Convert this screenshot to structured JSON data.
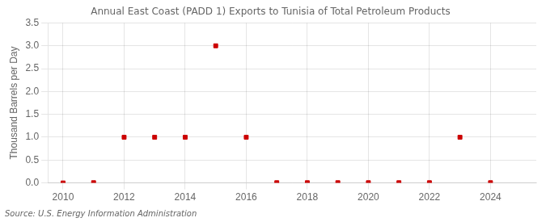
{
  "chart_data": {
    "type": "scatter",
    "title": "Annual East Coast (PADD 1) Exports to Tunisia of Total Petroleum Products",
    "ylabel": "Thousand Barrels per Day",
    "annotation": "Source: U.S. Energy Information Administration",
    "x": [
      2010,
      2011,
      2012,
      2013,
      2014,
      2015,
      2016,
      2017,
      2018,
      2019,
      2020,
      2021,
      2022,
      2023,
      2024
    ],
    "values": [
      0.0,
      0.005,
      1.0,
      1.0,
      1.0,
      3.0,
      1.0,
      0.005,
      0.005,
      0.005,
      0.005,
      0.005,
      0.005,
      1.0,
      0.005
    ],
    "color": "#cc0000",
    "marker": "square",
    "xlim": [
      2009.5,
      2025.5
    ],
    "xticks": [
      2010,
      2012,
      2014,
      2016,
      2018,
      2020,
      2022,
      2024
    ],
    "ylim": [
      0,
      3.5
    ],
    "yticks": [
      {
        "value": 0,
        "label": "0.0"
      },
      0.5,
      {
        "value": 1,
        "label": "1.0"
      },
      1.5,
      {
        "value": 2,
        "label": "2.0"
      },
      2.5,
      {
        "value": 3,
        "label": "3.0"
      },
      3.5
    ],
    "grid": true
  }
}
